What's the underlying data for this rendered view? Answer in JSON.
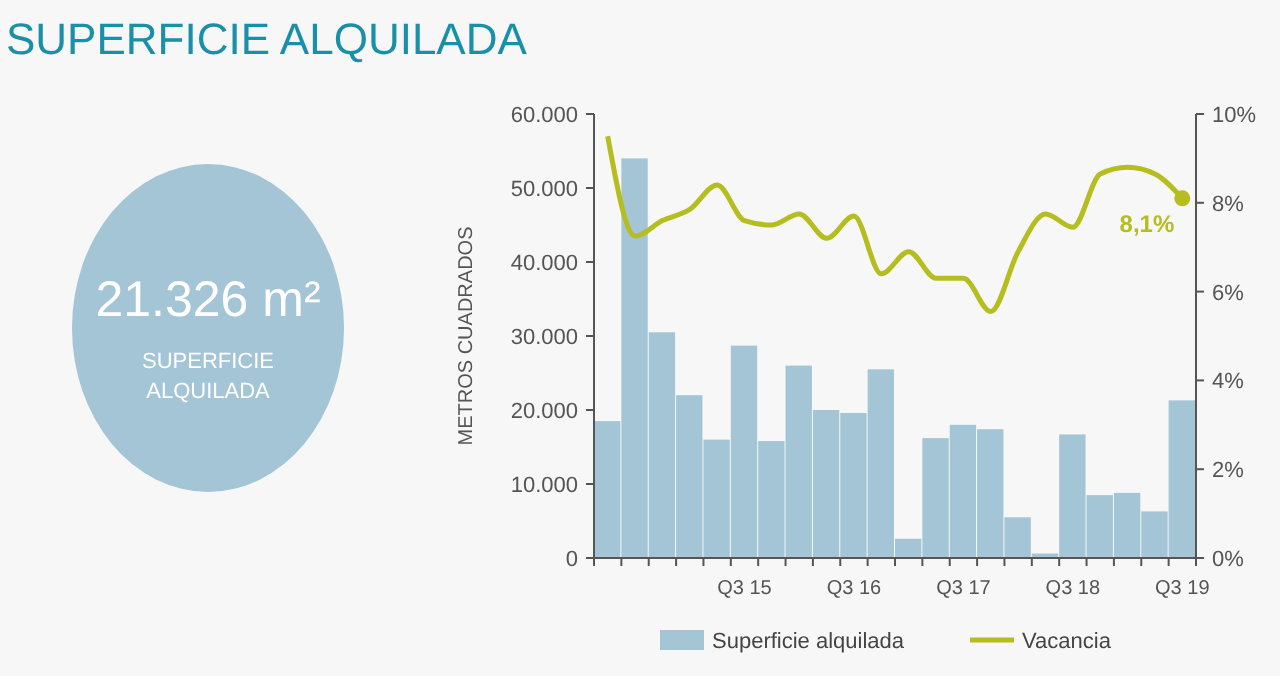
{
  "chart_data": {
    "type": "bar",
    "title": "SUPERFICIE ALQUILADA",
    "ylabel": "METROS CUADRADOS",
    "annotations": [
      "21.326 m²",
      "SUPERFICIE ALQUILADA"
    ],
    "categories": [
      null,
      null,
      null,
      null,
      null,
      "Q3 15",
      null,
      null,
      null,
      "Q3 16",
      null,
      null,
      null,
      "Q3 17",
      null,
      null,
      null,
      "Q3 18",
      null,
      null,
      null,
      "Q3 19"
    ],
    "series": [
      {
        "name": "Superficie alquilada",
        "color": "#a3c5d6",
        "values": [
          18500,
          54000,
          30500,
          22000,
          16000,
          28700,
          15800,
          26000,
          20000,
          19600,
          25500,
          2600,
          16200,
          18000,
          17400,
          5500,
          600,
          16700,
          8500,
          8800,
          6300,
          21300
        ]
      },
      {
        "name": "Vacancia",
        "type": "line",
        "axis": "y2",
        "color": "#b5be1e",
        "values": [
          9.5,
          7.25,
          7.6,
          7.85,
          8.4,
          7.6,
          7.5,
          7.75,
          7.2,
          7.7,
          6.4,
          6.9,
          6.3,
          6.3,
          5.55,
          6.9,
          7.75,
          7.45,
          8.65,
          8.8,
          8.65,
          8.1
        ],
        "value_labels": [
          null,
          null,
          null,
          null,
          null,
          null,
          null,
          null,
          null,
          null,
          null,
          null,
          null,
          null,
          null,
          null,
          null,
          null,
          null,
          null,
          null,
          "8,1%"
        ]
      }
    ],
    "ylim": [
      0,
      60000
    ],
    "yticks": [
      {
        "value": 0,
        "label": "0"
      },
      {
        "value": 10000,
        "label": "10.000"
      },
      {
        "value": 20000,
        "label": "20.000"
      },
      {
        "value": 30000,
        "label": "30.000"
      },
      {
        "value": 40000,
        "label": "40.000"
      },
      {
        "value": 50000,
        "label": "50.000"
      },
      {
        "value": 60000,
        "label": "60.000"
      }
    ],
    "y2lim": [
      0,
      10
    ],
    "y2ticks": [
      {
        "value": 0,
        "label": "0%"
      },
      {
        "value": 2,
        "label": "2%"
      },
      {
        "value": 4,
        "label": "4%"
      },
      {
        "value": 6,
        "label": "6%"
      },
      {
        "value": 8,
        "label": "8%"
      },
      {
        "value": 10,
        "label": "10%"
      }
    ],
    "legend": "bottom",
    "grid": false,
    "marker": "none",
    "line_style": "solid"
  }
}
